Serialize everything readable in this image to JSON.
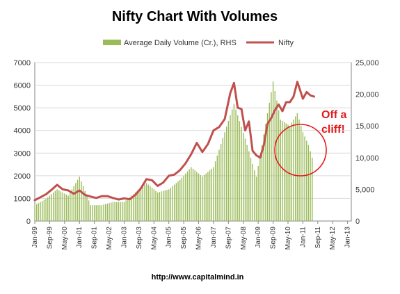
{
  "chart_data": {
    "type": "bar",
    "title": "Nifty Chart With Volumes",
    "legend": {
      "position": "top",
      "entries": [
        "Average Daily Volume (Cr.), RHS",
        "Nifty"
      ]
    },
    "y_left": {
      "min": 0,
      "max": 7000,
      "step": 1000,
      "ticks": [
        "0",
        "1000",
        "2000",
        "3000",
        "4000",
        "5000",
        "6000",
        "7000"
      ]
    },
    "y_right": {
      "min": 0,
      "max": 25000,
      "step": 5000,
      "ticks": [
        "0",
        "5,000",
        "10,000",
        "15,000",
        "20,000",
        "25,000"
      ]
    },
    "x_range": [
      "1999-01",
      "2013-03"
    ],
    "x_ticks": [
      "Jan-99",
      "Sep-99",
      "May-00",
      "Jan-01",
      "Sep-01",
      "May-02",
      "Jan-03",
      "Sep-03",
      "May-04",
      "Jan-05",
      "Sep-05",
      "May-06",
      "Jan-07",
      "Sep-07",
      "May-08",
      "Jan-09",
      "Sep-09",
      "May-10",
      "Jan-11",
      "Sep-11",
      "May-12",
      "Jan-13"
    ],
    "grid": {
      "horizontal": true,
      "vertical": false
    },
    "colors": {
      "volume": "#9bbb59",
      "nifty": "#c0504d",
      "annotation": "#e21b1b"
    },
    "series": [
      {
        "name": "Nifty",
        "type": "line",
        "axis": "left",
        "x": [
          "1999-01",
          "1999-04",
          "1999-07",
          "1999-10",
          "2000-01",
          "2000-04",
          "2000-07",
          "2000-10",
          "2001-01",
          "2001-04",
          "2001-07",
          "2001-10",
          "2002-01",
          "2002-04",
          "2002-07",
          "2002-10",
          "2003-01",
          "2003-04",
          "2003-07",
          "2003-10",
          "2004-01",
          "2004-04",
          "2004-07",
          "2004-10",
          "2005-01",
          "2005-04",
          "2005-07",
          "2005-10",
          "2006-01",
          "2006-04",
          "2006-07",
          "2006-10",
          "2007-01",
          "2007-04",
          "2007-07",
          "2007-10",
          "2007-12",
          "2008-02",
          "2008-04",
          "2008-06",
          "2008-08",
          "2008-10",
          "2008-12",
          "2009-02",
          "2009-04",
          "2009-06",
          "2009-08",
          "2009-10",
          "2009-12",
          "2010-02",
          "2010-04",
          "2010-06",
          "2010-08",
          "2010-10",
          "2010-11",
          "2011-01",
          "2011-03",
          "2011-05",
          "2011-07"
        ],
        "values": [
          920,
          1050,
          1180,
          1380,
          1600,
          1400,
          1350,
          1200,
          1350,
          1150,
          1080,
          1020,
          1100,
          1100,
          1020,
          950,
          1000,
          960,
          1150,
          1450,
          1850,
          1800,
          1550,
          1700,
          2000,
          2050,
          2250,
          2550,
          2950,
          3450,
          3050,
          3400,
          4000,
          4150,
          4500,
          5650,
          6100,
          5000,
          4950,
          4000,
          4400,
          3100,
          2900,
          2800,
          3350,
          4300,
          4550,
          4900,
          5150,
          4850,
          5250,
          5250,
          5500,
          6150,
          5900,
          5400,
          5700,
          5550,
          5500
        ]
      },
      {
        "name": "Average Daily Volume (Cr.), RHS",
        "type": "bar",
        "axis": "right",
        "x": [
          "1999-01",
          "1999-07",
          "2000-01",
          "2000-07",
          "2001-01",
          "2001-07",
          "2002-01",
          "2002-07",
          "2003-01",
          "2003-07",
          "2004-01",
          "2004-07",
          "2005-01",
          "2005-07",
          "2006-01",
          "2006-07",
          "2007-01",
          "2007-07",
          "2007-12",
          "2008-06",
          "2008-12",
          "2009-06",
          "2009-09",
          "2010-01",
          "2010-06",
          "2010-10",
          "2011-01",
          "2011-04",
          "2011-06"
        ],
        "values": [
          2500,
          3500,
          5000,
          4000,
          7000,
          2500,
          2500,
          3000,
          3000,
          4500,
          6000,
          4500,
          5000,
          6500,
          8500,
          7000,
          8500,
          14000,
          18500,
          13000,
          7000,
          17000,
          22000,
          16000,
          15000,
          17000,
          14000,
          12000,
          10000
        ]
      }
    ],
    "annotations": [
      {
        "text": "Off a",
        "anchor": "2011-06"
      },
      {
        "text": "cliff!",
        "anchor": "2011-06"
      }
    ],
    "footer": "http://www.capitalmind.in"
  }
}
